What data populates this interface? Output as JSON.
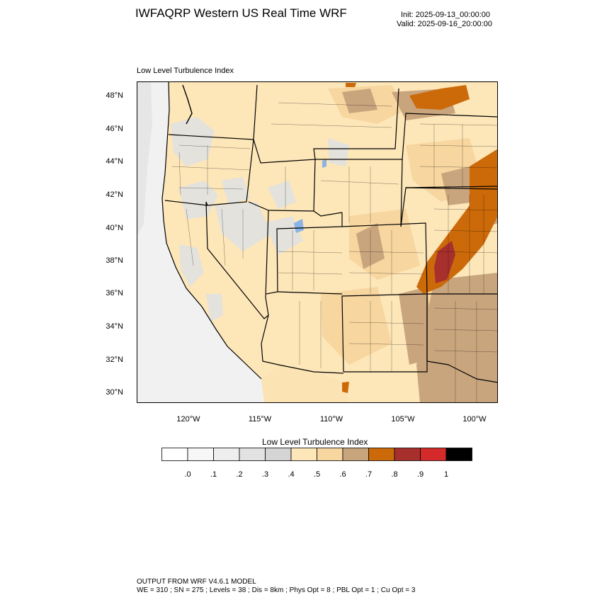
{
  "header": {
    "title": "IWFAQRP Western US Real Time WRF",
    "init": "Init: 2025-09-13_00:00:00",
    "valid": "Valid: 2025-09-16_20:00:00"
  },
  "panel": {
    "label": "Low Level Turbulence Index"
  },
  "axes": {
    "lat_labels": [
      "48°N",
      "46°N",
      "44°N",
      "42°N",
      "40°N",
      "38°N",
      "36°N",
      "34°N",
      "32°N",
      "30°N"
    ],
    "lon_labels": [
      "120°W",
      "115°W",
      "110°W",
      "105°W",
      "100°W"
    ]
  },
  "legend": {
    "title": "Low Level Turbulence Index",
    "ticks": [
      ".0",
      ".1",
      ".2",
      ".3",
      ".4",
      ".5",
      ".6",
      ".7",
      ".8",
      ".9",
      "1"
    ],
    "colors": [
      "#ffffff",
      "#f7f7f7",
      "#eeeeee",
      "#e2e2e2",
      "#d5d5d5",
      "#fde6b8",
      "#f7d69f",
      "#c9a57e",
      "#cc6a0a",
      "#a7302d",
      "#d42a2a",
      "#000000"
    ]
  },
  "footer": {
    "line1": "OUTPUT FROM WRF V4.6.1 MODEL",
    "line2": "WE = 310 ; SN = 275 ; Levels = 38 ; Dis = 8km ; Phys Opt = 8 ; PBL Opt = 1 ; Cu Opt = 3"
  },
  "map": {
    "type": "filled-contour-map",
    "variable": "Low Level Turbulence Index",
    "colors": {
      "ocean": "#f2f2f2",
      "land_base": "#fde6b8",
      "mid": "#f7d69f",
      "gray_low": "#e2e2e2",
      "tan": "#c9a57e",
      "orange": "#cc6a0a",
      "dark_red": "#a7302d",
      "lake": "#8ab4e6",
      "border": "#000000"
    }
  }
}
